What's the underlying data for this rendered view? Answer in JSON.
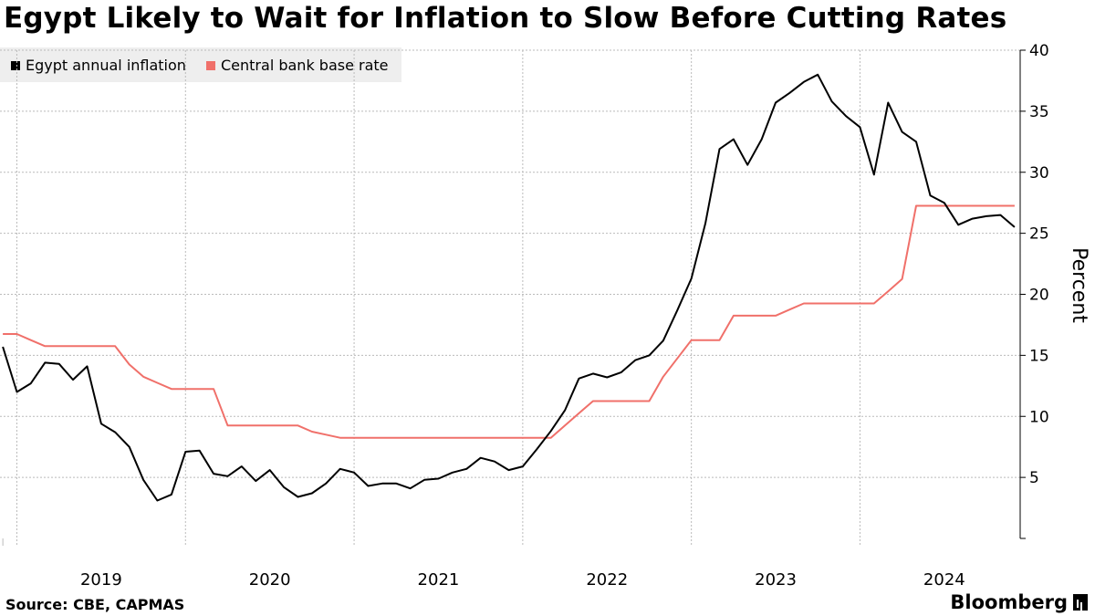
{
  "title": "Egypt Likely to Wait for Inflation to Slow Before Cutting Rates",
  "source": "Source: CBE, CAPMAS",
  "brand": "Bloomberg",
  "colors": {
    "inflation": "#000000",
    "rate": "#f0706a",
    "grid": "#bbbbbb",
    "legend_bg": "#eeeeee"
  },
  "chart_data": {
    "type": "line",
    "title": "Egypt Likely to Wait for Inflation to Slow Before Cutting Rates",
    "xlabel": "",
    "ylabel": "Percent",
    "ylim": [
      0,
      40
    ],
    "xlim": [
      2018.9,
      2024.95
    ],
    "yticks": [
      5,
      10,
      15,
      20,
      25,
      30,
      35,
      40
    ],
    "xticks": [
      {
        "label": "2019",
        "value": 2019
      },
      {
        "label": "2020",
        "value": 2020
      },
      {
        "label": "2021",
        "value": 2021
      },
      {
        "label": "2022",
        "value": 2022
      },
      {
        "label": "2023",
        "value": 2023
      },
      {
        "label": "2024",
        "value": 2024
      }
    ],
    "grid": true,
    "legend_position": "top-left",
    "series": [
      {
        "name": "Egypt annual inflation",
        "color": "#000000",
        "x": [
          2018.917,
          2019.0,
          2019.083,
          2019.167,
          2019.25,
          2019.333,
          2019.417,
          2019.5,
          2019.583,
          2019.667,
          2019.75,
          2019.833,
          2019.917,
          2020.0,
          2020.083,
          2020.167,
          2020.25,
          2020.333,
          2020.417,
          2020.5,
          2020.583,
          2020.667,
          2020.75,
          2020.833,
          2020.917,
          2021.0,
          2021.083,
          2021.167,
          2021.25,
          2021.333,
          2021.417,
          2021.5,
          2021.583,
          2021.667,
          2021.75,
          2021.833,
          2021.917,
          2022.0,
          2022.083,
          2022.167,
          2022.25,
          2022.333,
          2022.417,
          2022.5,
          2022.583,
          2022.667,
          2022.75,
          2022.833,
          2022.917,
          2023.0,
          2023.083,
          2023.167,
          2023.25,
          2023.333,
          2023.417,
          2023.5,
          2023.583,
          2023.667,
          2023.75,
          2023.833,
          2023.917,
          2024.0,
          2024.083,
          2024.167,
          2024.25,
          2024.333,
          2024.417,
          2024.5,
          2024.583,
          2024.667,
          2024.75,
          2024.833,
          2024.917
        ],
        "values": [
          15.7,
          12.0,
          12.7,
          14.4,
          14.3,
          13.0,
          14.1,
          9.4,
          8.7,
          7.5,
          4.8,
          3.1,
          3.6,
          7.1,
          7.2,
          5.3,
          5.1,
          5.9,
          4.7,
          5.6,
          4.2,
          3.4,
          3.7,
          4.5,
          5.7,
          5.4,
          4.3,
          4.5,
          4.5,
          4.1,
          4.8,
          4.9,
          5.4,
          5.7,
          6.6,
          6.3,
          5.6,
          5.9,
          7.3,
          8.8,
          10.5,
          13.1,
          13.5,
          13.2,
          13.6,
          14.6,
          15.0,
          16.2,
          18.7,
          21.3,
          25.8,
          31.9,
          32.7,
          30.6,
          32.7,
          35.7,
          36.5,
          37.4,
          38.0,
          35.8,
          34.6,
          33.7,
          29.8,
          35.7,
          33.3,
          32.5,
          28.1,
          27.5,
          25.7,
          26.2,
          26.4,
          26.5,
          25.5
        ]
      },
      {
        "name": "Central bank base rate",
        "color": "#f0706a",
        "x": [
          2018.917,
          2019.0,
          2019.083,
          2019.167,
          2019.25,
          2019.333,
          2019.417,
          2019.5,
          2019.583,
          2019.667,
          2019.75,
          2019.833,
          2019.917,
          2020.0,
          2020.083,
          2020.167,
          2020.25,
          2020.333,
          2020.417,
          2020.5,
          2020.583,
          2020.667,
          2020.75,
          2020.833,
          2020.917,
          2021.0,
          2021.083,
          2021.167,
          2021.25,
          2021.333,
          2021.417,
          2021.5,
          2021.583,
          2021.667,
          2021.75,
          2021.833,
          2021.917,
          2022.0,
          2022.083,
          2022.167,
          2022.25,
          2022.333,
          2022.417,
          2022.5,
          2022.583,
          2022.667,
          2022.75,
          2022.833,
          2022.917,
          2023.0,
          2023.083,
          2023.167,
          2023.25,
          2023.333,
          2023.417,
          2023.5,
          2023.583,
          2023.667,
          2023.75,
          2023.833,
          2023.917,
          2024.0,
          2024.083,
          2024.167,
          2024.25,
          2024.333,
          2024.417,
          2024.5,
          2024.583,
          2024.667,
          2024.75,
          2024.833,
          2024.917
        ],
        "values": [
          16.75,
          16.75,
          16.25,
          15.75,
          15.75,
          15.75,
          15.75,
          15.75,
          15.75,
          14.25,
          13.25,
          12.75,
          12.25,
          12.25,
          12.25,
          12.25,
          9.25,
          9.25,
          9.25,
          9.25,
          9.25,
          9.25,
          8.75,
          8.5,
          8.25,
          8.25,
          8.25,
          8.25,
          8.25,
          8.25,
          8.25,
          8.25,
          8.25,
          8.25,
          8.25,
          8.25,
          8.25,
          8.25,
          8.25,
          8.25,
          9.25,
          10.25,
          11.25,
          11.25,
          11.25,
          11.25,
          11.25,
          13.25,
          14.75,
          16.25,
          16.25,
          16.25,
          18.25,
          18.25,
          18.25,
          18.25,
          18.75,
          19.25,
          19.25,
          19.25,
          19.25,
          19.25,
          19.25,
          20.25,
          21.25,
          27.25,
          27.25,
          27.25,
          27.25,
          27.25,
          27.25,
          27.25,
          27.25
        ]
      }
    ]
  }
}
